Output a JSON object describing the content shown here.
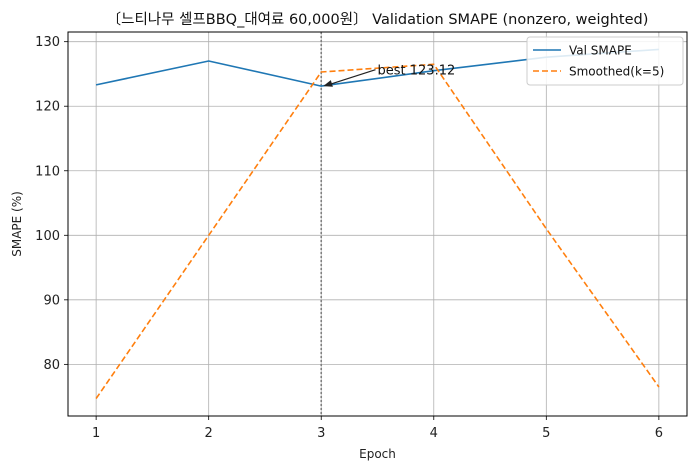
{
  "chart_data": {
    "type": "line",
    "title": "〔느티나무 셀프BBQ_대여료 60,000원〕 Validation SMAPE (nonzero, weighted)",
    "xlabel": "Epoch",
    "ylabel": "SMAPE (%)",
    "x": [
      1,
      2,
      3,
      4,
      5,
      6
    ],
    "xlim": [
      0.75,
      6.25
    ],
    "ylim": [
      72,
      131.5
    ],
    "xticks": [
      1,
      2,
      3,
      4,
      5,
      6
    ],
    "yticks": [
      80,
      90,
      100,
      110,
      120,
      130
    ],
    "grid": true,
    "legend_position": "top-right",
    "series": [
      {
        "name": "Val SMAPE",
        "values": [
          123.3,
          127.0,
          123.12,
          125.5,
          127.6,
          128.8
        ],
        "color": "#1f77b4",
        "style": "solid"
      },
      {
        "name": "Smoothed(k=5)",
        "values": [
          74.7,
          100.0,
          125.3,
          126.5,
          101.0,
          76.5
        ],
        "color": "#ff7f0e",
        "style": "dashed"
      }
    ],
    "vline": {
      "x": 3,
      "color": "#808080",
      "style": "dotted"
    },
    "annotation": {
      "text": "best 123.12",
      "x": 3,
      "y": 123.12,
      "text_x": 3.5,
      "text_y": 125.5
    }
  }
}
